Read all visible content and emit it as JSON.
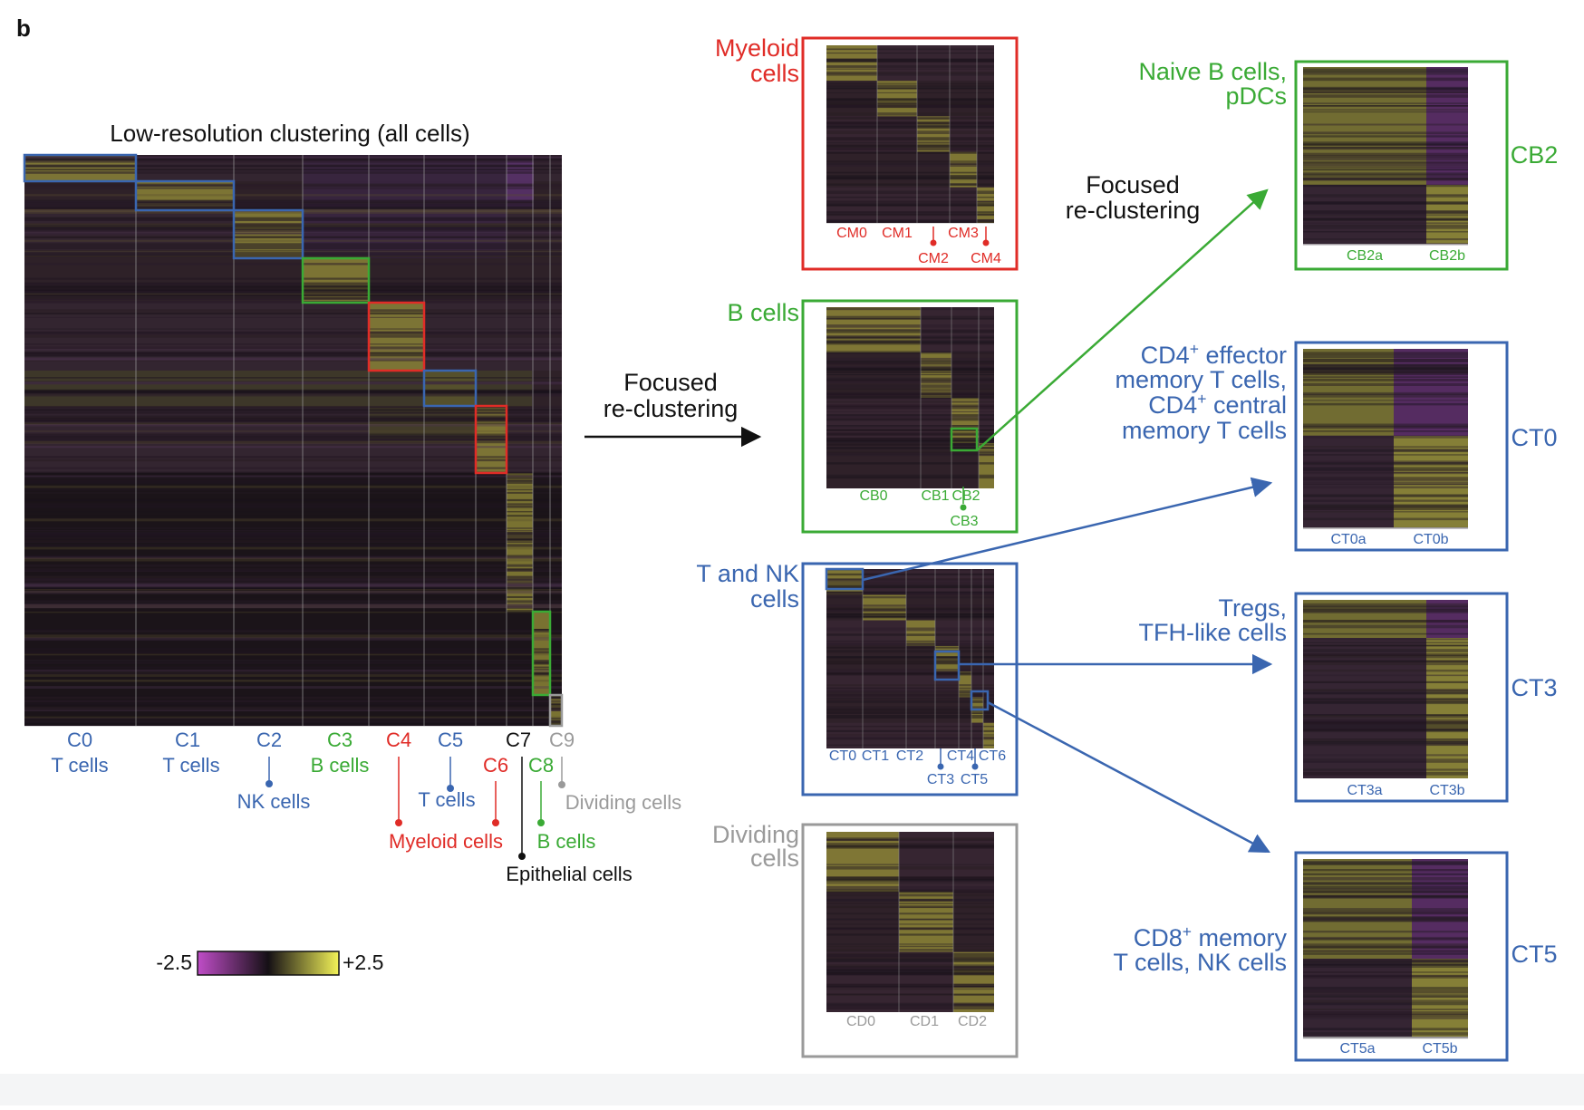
{
  "panel_letter": "b",
  "colors": {
    "blue": "#3a66b0",
    "green": "#3aaa35",
    "red": "#e02c27",
    "gray": "#9a9a9a",
    "black": "#111111",
    "heat_low": "#c04dc8",
    "heat_mid": "#151015",
    "heat_high": "#f3f358"
  },
  "main": {
    "title": "Low-resolution clustering (all cells)",
    "clusters": [
      {
        "id": "C0",
        "type": "T cells",
        "color": "blue"
      },
      {
        "id": "C1",
        "type": "T cells",
        "color": "blue"
      },
      {
        "id": "C2",
        "type": "NK cells",
        "color": "blue"
      },
      {
        "id": "C3",
        "type": "B cells",
        "color": "green"
      },
      {
        "id": "C4",
        "type": "Myeloid cells",
        "color": "red"
      },
      {
        "id": "C5",
        "type": "T cells",
        "color": "blue"
      },
      {
        "id": "C6",
        "type": "Myeloid cells",
        "color": "red"
      },
      {
        "id": "C7",
        "type": "Epithelial cells",
        "color": "black"
      },
      {
        "id": "C8",
        "type": "B cells",
        "color": "green"
      },
      {
        "id": "C9",
        "type": "Dividing cells",
        "color": "gray"
      }
    ]
  },
  "arrow_label_main": [
    "Focused",
    "re-clustering"
  ],
  "arrow_label_secondary": [
    "Focused",
    "re-clustering"
  ],
  "colorbar": {
    "min_label": "-2.5",
    "max_label": "+2.5"
  },
  "subpanels": [
    {
      "key": "myeloid",
      "label_lines": [
        "Myeloid",
        "cells"
      ],
      "color": "red",
      "clusters": [
        "CM0",
        "CM1",
        "CM2",
        "CM3",
        "CM4"
      ]
    },
    {
      "key": "bcells",
      "label_lines": [
        "B cells"
      ],
      "color": "green",
      "clusters": [
        "CB0",
        "CB1",
        "CB2",
        "CB3"
      ]
    },
    {
      "key": "tnk",
      "label_lines": [
        "T and NK",
        "cells"
      ],
      "color": "blue",
      "clusters": [
        "CT0",
        "CT1",
        "CT2",
        "CT3",
        "CT4",
        "CT5",
        "CT6"
      ]
    },
    {
      "key": "dividing",
      "label_lines": [
        "Dividing",
        "cells"
      ],
      "color": "gray",
      "clusters": [
        "CD0",
        "CD1",
        "CD2"
      ]
    }
  ],
  "subclusters": [
    {
      "key": "cb2",
      "name": "CB2",
      "color": "green",
      "label_lines": [
        "Naive B cells,",
        "pDCs"
      ],
      "sub": [
        "CB2a",
        "CB2b"
      ]
    },
    {
      "key": "ct0",
      "name": "CT0",
      "color": "blue",
      "label_lines": [
        "CD4+ effector",
        "memory T cells,",
        "CD4+ central",
        "memory T cells"
      ],
      "sub": [
        "CT0a",
        "CT0b"
      ]
    },
    {
      "key": "ct3",
      "name": "CT3",
      "color": "blue",
      "label_lines": [
        "Tregs,",
        "TFH-like cells"
      ],
      "sub": [
        "CT3a",
        "CT3b"
      ]
    },
    {
      "key": "ct5",
      "name": "CT5",
      "color": "blue",
      "label_lines": [
        "CD8+ memory",
        "T cells, NK cells"
      ],
      "sub": [
        "CT5a",
        "CT5b"
      ]
    }
  ]
}
